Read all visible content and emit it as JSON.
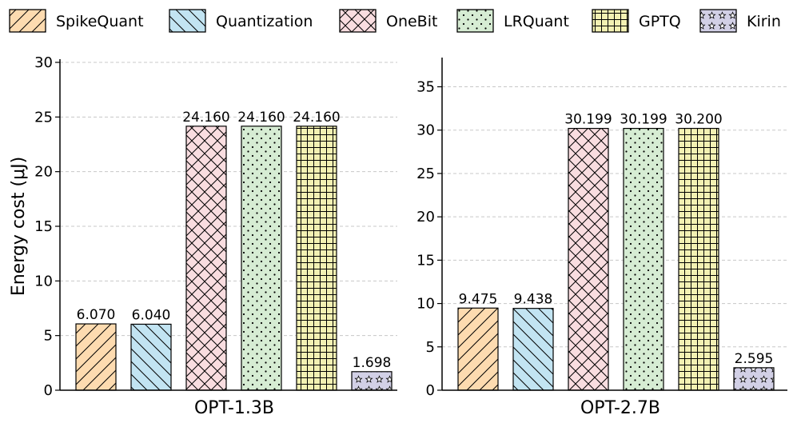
{
  "chart_data": {
    "type": "bar",
    "ylabel": "Energy cost (μJ)",
    "legend": [
      {
        "name": "SpikeQuant",
        "color": "#fddbb0",
        "pattern": "fwd"
      },
      {
        "name": "Quantization",
        "color": "#c2e4f2",
        "pattern": "back"
      },
      {
        "name": "OneBit",
        "color": "#f9dde0",
        "pattern": "cross"
      },
      {
        "name": "LRQuant",
        "color": "#d6ecd3",
        "pattern": "dots"
      },
      {
        "name": "GPTQ",
        "color": "#f3f1b3",
        "pattern": "grid"
      },
      {
        "name": "Kirin",
        "color": "#d2d0e6",
        "pattern": "stars"
      }
    ],
    "panels": [
      {
        "category": "OPT-1.3B",
        "ylim": [
          0,
          30
        ],
        "yticks": [
          0,
          5,
          10,
          15,
          20,
          25,
          30
        ],
        "values": [
          6.07,
          6.04,
          24.16,
          24.16,
          24.16,
          1.698
        ],
        "labels": [
          "6.070",
          "6.040",
          "24.160",
          "24.160",
          "24.160",
          "1.698"
        ]
      },
      {
        "category": "OPT-2.7B",
        "ylim": [
          0,
          38
        ],
        "yticks": [
          0,
          5,
          10,
          15,
          20,
          25,
          30,
          35
        ],
        "values": [
          9.475,
          9.438,
          30.199,
          30.199,
          30.2,
          2.595
        ],
        "labels": [
          "9.475",
          "9.438",
          "30.199",
          "30.199",
          "30.200",
          "2.595"
        ]
      }
    ],
    "grid": "horizontal-dashed",
    "legend_position": "top"
  }
}
